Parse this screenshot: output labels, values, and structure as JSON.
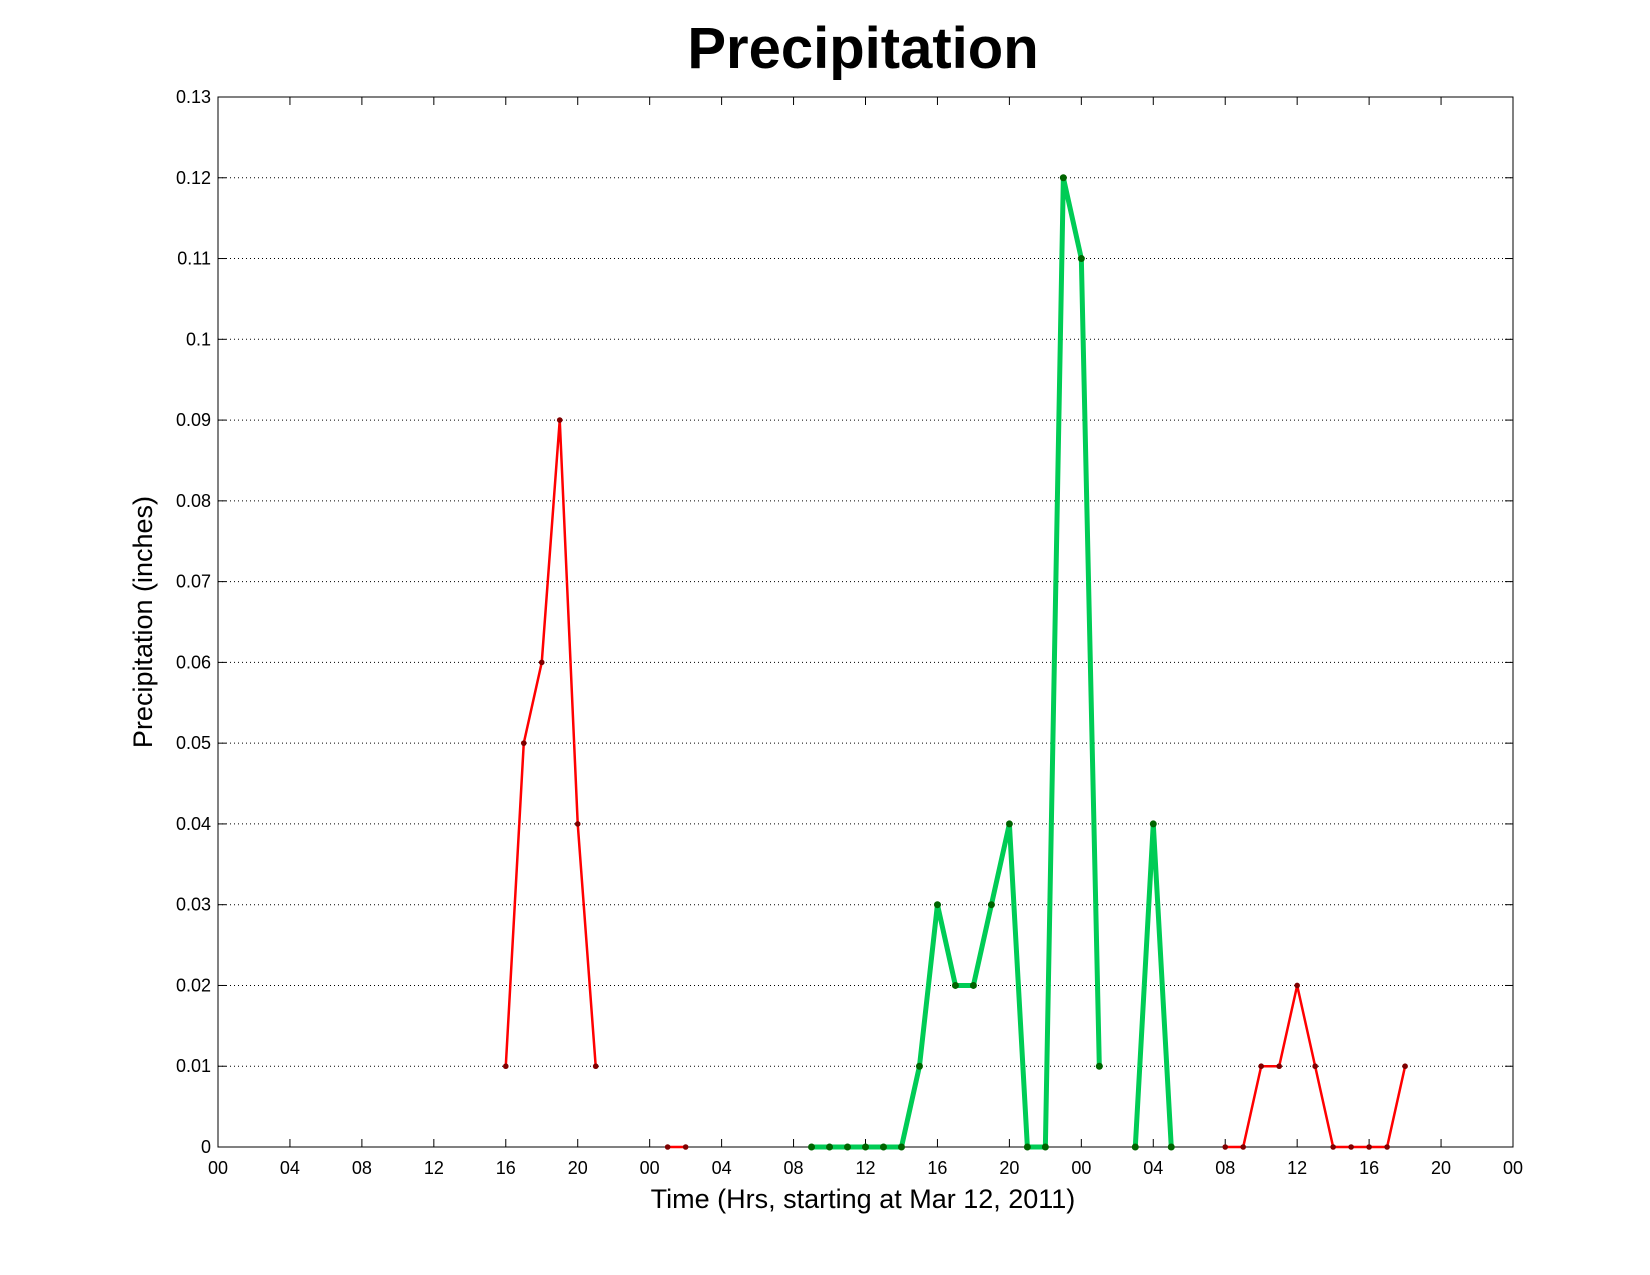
{
  "chart_data": {
    "type": "line",
    "title": "Precipitation",
    "xlabel": "Time (Hrs, starting at Mar 12, 2011)",
    "ylabel": "Precipitation (inches)",
    "xlim": [
      0,
      72
    ],
    "ylim": [
      0,
      0.13
    ],
    "x_ticks": [
      0,
      4,
      8,
      12,
      16,
      20,
      24,
      28,
      32,
      36,
      40,
      44,
      48,
      52,
      56,
      60,
      64,
      68,
      72
    ],
    "x_tick_labels": [
      "00",
      "04",
      "08",
      "12",
      "16",
      "20",
      "00",
      "04",
      "08",
      "12",
      "16",
      "20",
      "00",
      "04",
      "08",
      "12",
      "16",
      "20",
      "00"
    ],
    "y_ticks": [
      0,
      0.01,
      0.02,
      0.03,
      0.04,
      0.05,
      0.06,
      0.07,
      0.08,
      0.09,
      0.1,
      0.11,
      0.12,
      0.13
    ],
    "y_tick_labels": [
      "0",
      "0.01",
      "0.02",
      "0.03",
      "0.04",
      "0.05",
      "0.06",
      "0.07",
      "0.08",
      "0.09",
      "0.1",
      "0.11",
      "0.12",
      "0.13"
    ],
    "grid": "horizontal dotted",
    "series": [
      {
        "color": "#ff0000",
        "marker_color": "#800000",
        "style": "thin",
        "points": [
          [
            16,
            0.01
          ],
          [
            17,
            0.05
          ],
          [
            18,
            0.06
          ],
          [
            19,
            0.09
          ],
          [
            20,
            0.04
          ],
          [
            21,
            0.01
          ]
        ]
      },
      {
        "color": "#ff0000",
        "marker_color": "#800000",
        "style": "thin",
        "points": [
          [
            25,
            0
          ],
          [
            26,
            0
          ]
        ]
      },
      {
        "color": "#00cc55",
        "marker_color": "#006400",
        "style": "thick",
        "points": [
          [
            33,
            0
          ],
          [
            34,
            0
          ],
          [
            35,
            0
          ],
          [
            36,
            0
          ],
          [
            37,
            0
          ],
          [
            38,
            0
          ],
          [
            39,
            0.01
          ],
          [
            40,
            0.03
          ],
          [
            41,
            0.02
          ],
          [
            42,
            0.02
          ],
          [
            43,
            0.03
          ],
          [
            44,
            0.04
          ],
          [
            45,
            0
          ],
          [
            46,
            0
          ],
          [
            47,
            0.12
          ],
          [
            48,
            0.11
          ],
          [
            49,
            0.01
          ]
        ]
      },
      {
        "color": "#00cc55",
        "marker_color": "#006400",
        "style": "thick",
        "points": [
          [
            51,
            0
          ],
          [
            52,
            0.04
          ],
          [
            53,
            0
          ]
        ]
      },
      {
        "color": "#ff0000",
        "marker_color": "#800000",
        "style": "thin",
        "points": [
          [
            56,
            0
          ],
          [
            57,
            0
          ],
          [
            58,
            0.01
          ],
          [
            59,
            0.01
          ],
          [
            60,
            0.02
          ],
          [
            61,
            0.01
          ],
          [
            62,
            0
          ],
          [
            63,
            0
          ],
          [
            64,
            0
          ],
          [
            65,
            0
          ],
          [
            66,
            0.01
          ]
        ]
      }
    ]
  }
}
